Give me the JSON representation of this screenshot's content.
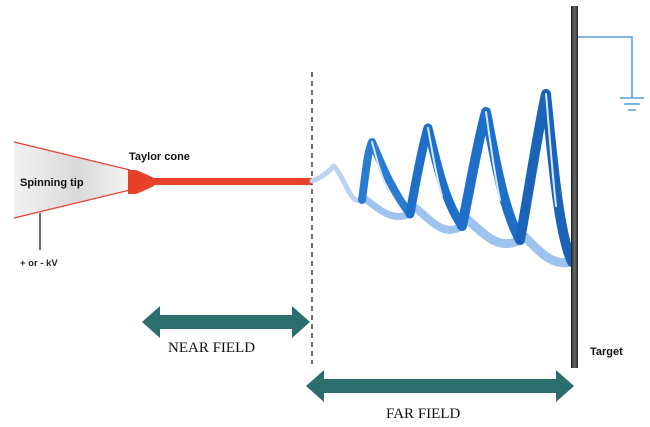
{
  "labels": {
    "spinning_tip": "Spinning tip",
    "taylor_cone": "Taylor cone",
    "voltage": "+ or - kV",
    "near_field": "NEAR FIELD",
    "far_field": "FAR FIELD",
    "target": "Target"
  },
  "colors": {
    "jet": "#e8412a",
    "spiral_dark": "#1e6fc9",
    "spiral_light": "#9cc4ee",
    "arrow": "#2c6e6e",
    "target": "#3a3a3a",
    "ground_wire": "#5b9bd5",
    "tip_edge": "#e8412a"
  },
  "icons": [
    "ground-symbol",
    "double-arrow"
  ]
}
